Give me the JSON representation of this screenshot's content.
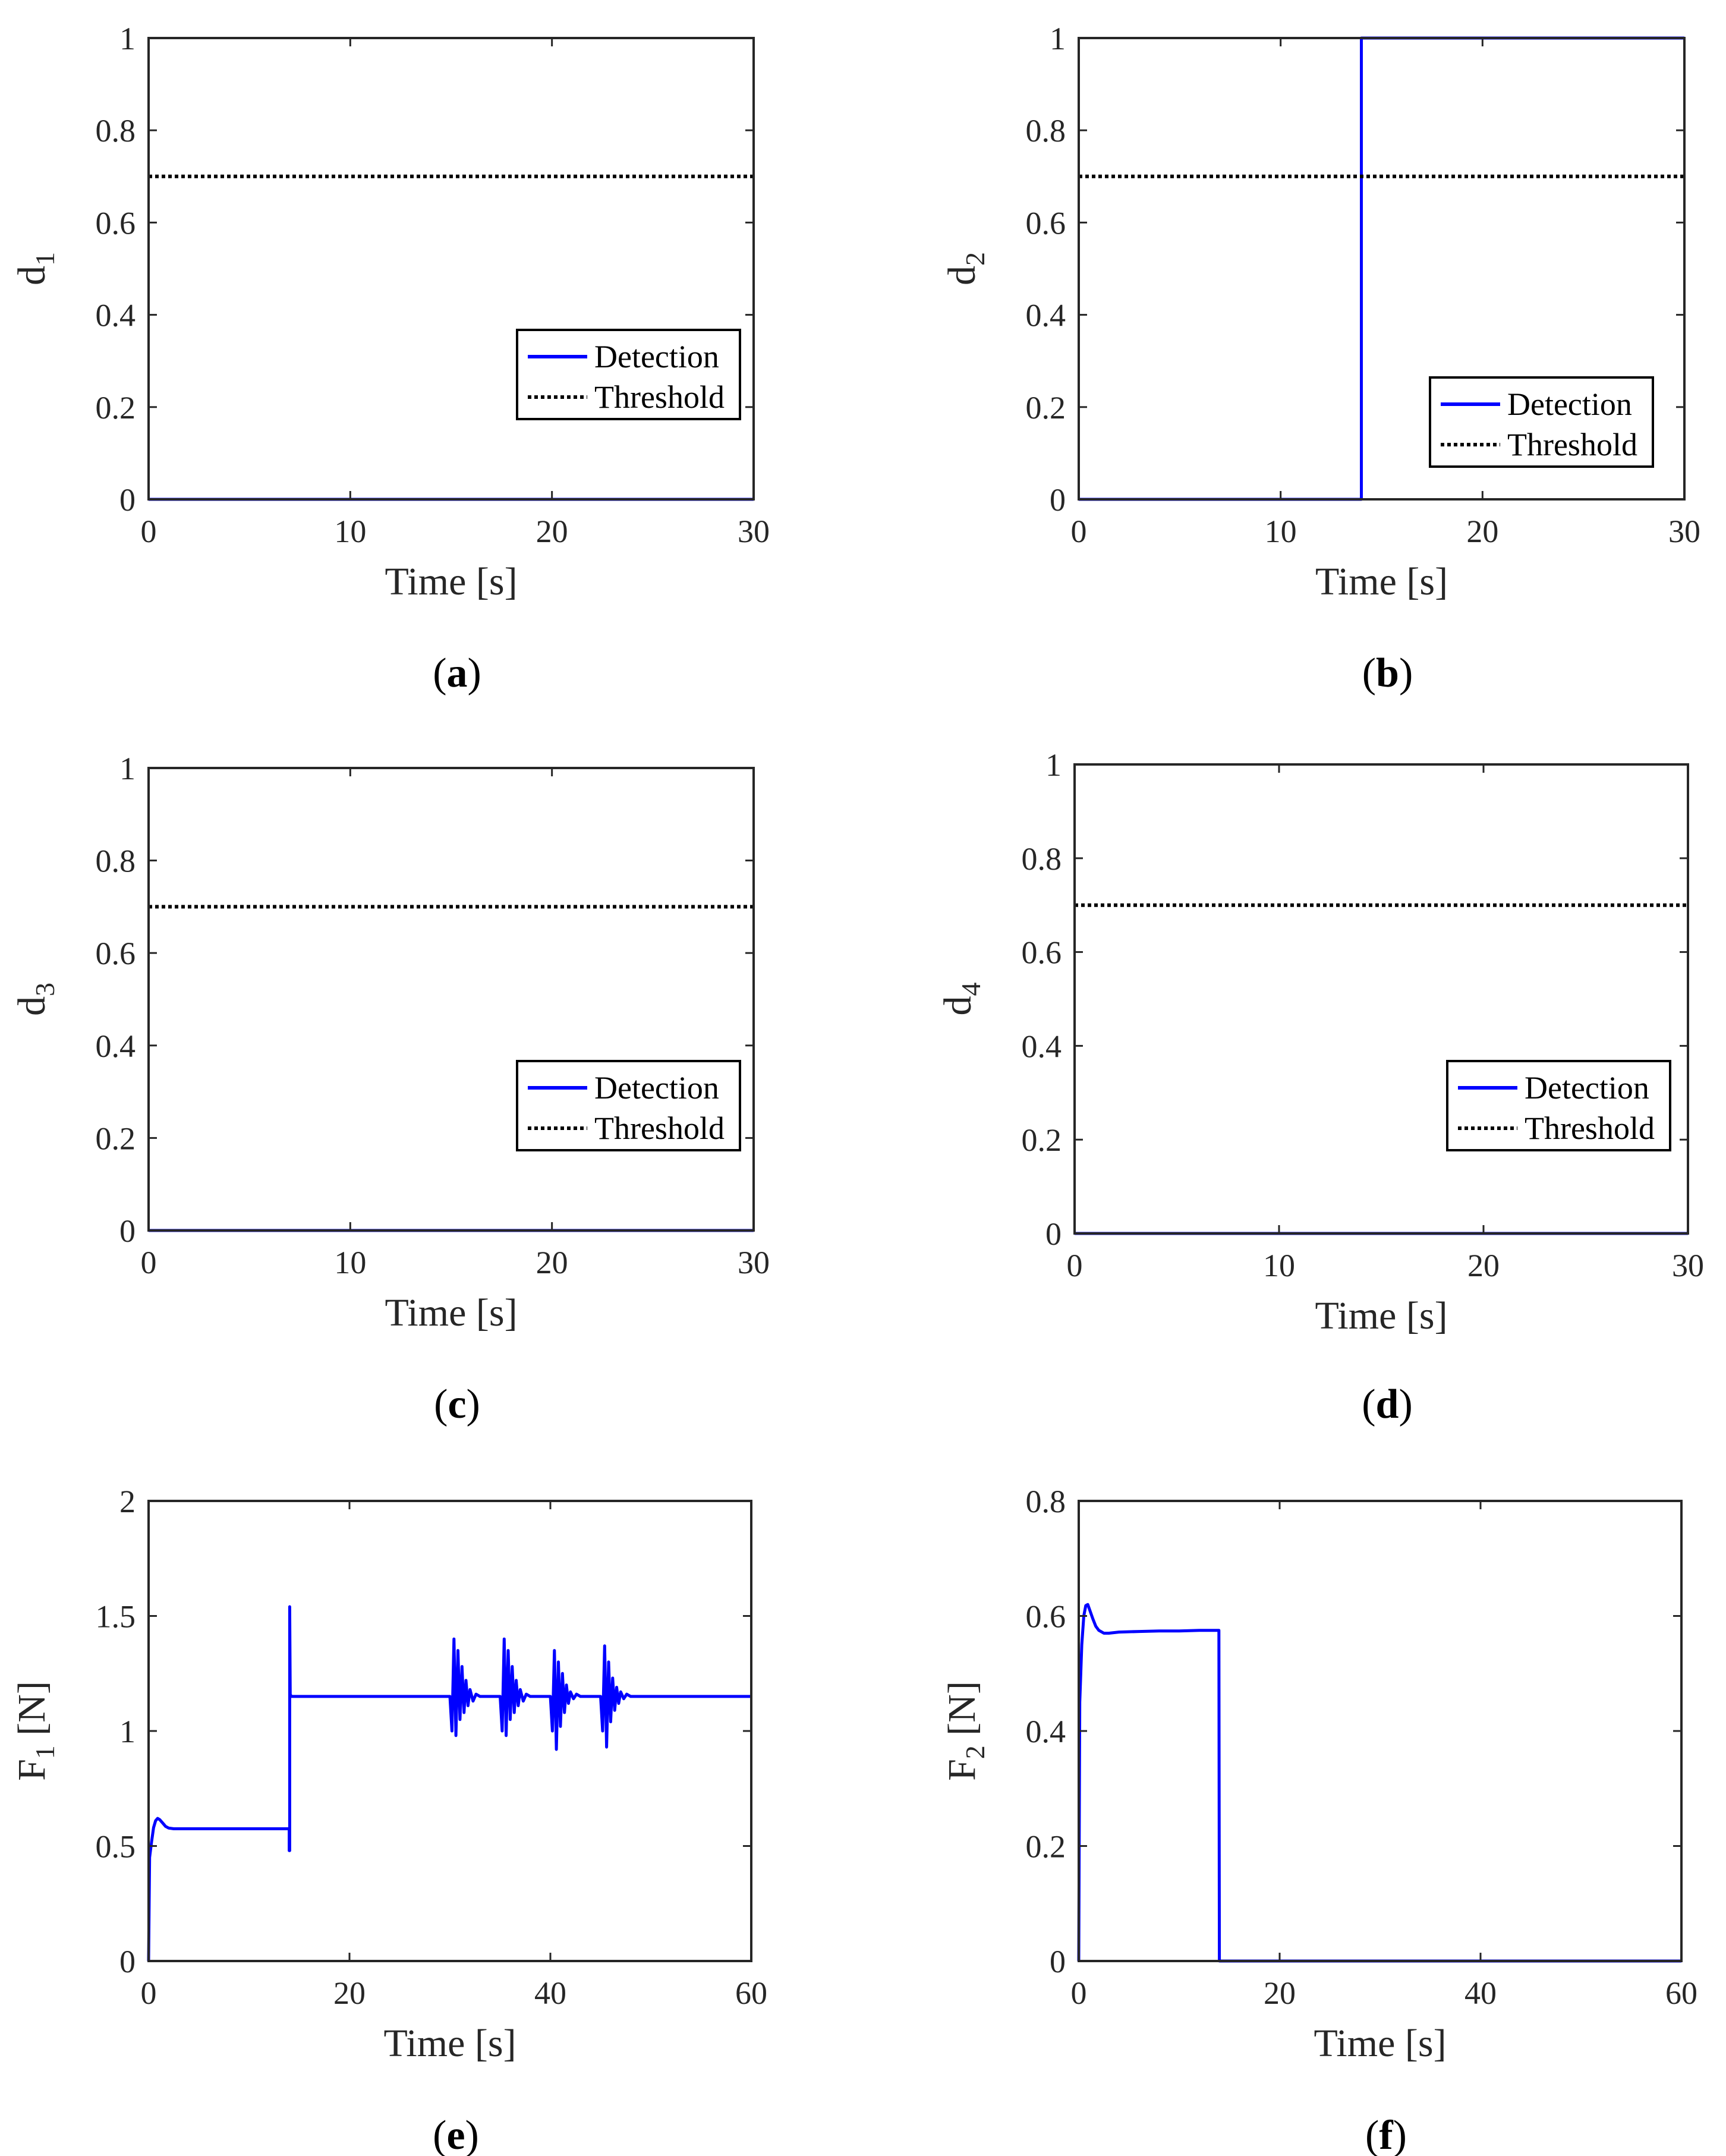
{
  "figure": {
    "colors": {
      "series": "#0000ff",
      "threshold": "#000000",
      "axes": "#262626"
    }
  },
  "chart_data": [
    {
      "id": "a",
      "caption": "(a)",
      "caption_letter": "a",
      "type": "line",
      "xlabel": "Time [s]",
      "ylabel": "d",
      "ylabel_sub": "1",
      "xlim": [
        0,
        30
      ],
      "ylim": [
        0,
        1
      ],
      "xticks": [
        "0",
        "10",
        "20",
        "30"
      ],
      "yticks": [
        "0",
        "0.2",
        "0.4",
        "0.6",
        "0.8",
        "1"
      ],
      "legend": {
        "position": "lower-right",
        "entries": [
          "Detection",
          "Threshold"
        ]
      },
      "series": [
        {
          "name": "Detection",
          "style": "solid",
          "x": [
            0,
            30
          ],
          "y": [
            0,
            0
          ]
        },
        {
          "name": "Threshold",
          "style": "dotted",
          "x": [
            0,
            30
          ],
          "y": [
            0.7,
            0.7
          ]
        }
      ]
    },
    {
      "id": "b",
      "caption": "(b)",
      "caption_letter": "b",
      "type": "line",
      "xlabel": "Time [s]",
      "ylabel": "d",
      "ylabel_sub": "2",
      "xlim": [
        0,
        30
      ],
      "ylim": [
        0,
        1
      ],
      "xticks": [
        "0",
        "10",
        "20",
        "30"
      ],
      "yticks": [
        "0",
        "0.2",
        "0.4",
        "0.6",
        "0.8",
        "1"
      ],
      "legend": {
        "position": "lower-right",
        "entries": [
          "Detection",
          "Threshold"
        ]
      },
      "series": [
        {
          "name": "Detection",
          "style": "solid",
          "x": [
            0,
            14,
            14,
            30
          ],
          "y": [
            0,
            0,
            1,
            1
          ]
        },
        {
          "name": "Threshold",
          "style": "dotted",
          "x": [
            0,
            30
          ],
          "y": [
            0.7,
            0.7
          ]
        }
      ]
    },
    {
      "id": "c",
      "caption": "(c)",
      "caption_letter": "c",
      "type": "line",
      "xlabel": "Time [s]",
      "ylabel": "d",
      "ylabel_sub": "3",
      "xlim": [
        0,
        30
      ],
      "ylim": [
        0,
        1
      ],
      "xticks": [
        "0",
        "10",
        "20",
        "30"
      ],
      "yticks": [
        "0",
        "0.2",
        "0.4",
        "0.6",
        "0.8",
        "1"
      ],
      "legend": {
        "position": "lower-right",
        "entries": [
          "Detection",
          "Threshold"
        ]
      },
      "series": [
        {
          "name": "Detection",
          "style": "solid",
          "x": [
            0,
            30
          ],
          "y": [
            0,
            0
          ]
        },
        {
          "name": "Threshold",
          "style": "dotted",
          "x": [
            0,
            30
          ],
          "y": [
            0.7,
            0.7
          ]
        }
      ]
    },
    {
      "id": "d",
      "caption": "(d)",
      "caption_letter": "d",
      "type": "line",
      "xlabel": "Time [s]",
      "ylabel": "d",
      "ylabel_sub": "4",
      "xlim": [
        0,
        30
      ],
      "ylim": [
        0,
        1
      ],
      "xticks": [
        "0",
        "10",
        "20",
        "30"
      ],
      "yticks": [
        "0",
        "0.2",
        "0.4",
        "0.6",
        "0.8",
        "1"
      ],
      "legend": {
        "position": "lower-right",
        "entries": [
          "Detection",
          "Threshold"
        ]
      },
      "series": [
        {
          "name": "Detection",
          "style": "solid",
          "x": [
            0,
            30
          ],
          "y": [
            0,
            0
          ]
        },
        {
          "name": "Threshold",
          "style": "dotted",
          "x": [
            0,
            30
          ],
          "y": [
            0.7,
            0.7
          ]
        }
      ]
    },
    {
      "id": "e",
      "caption": "(e)",
      "caption_letter": "e",
      "type": "line",
      "xlabel": "Time [s]",
      "ylabel": "F",
      "ylabel_sub": "1",
      "ylabel_tail": " [N]",
      "xlim": [
        0,
        60
      ],
      "ylim": [
        0,
        2
      ],
      "xticks": [
        "0",
        "20",
        "40",
        "60"
      ],
      "yticks": [
        "0",
        "0.5",
        "1",
        "1.5",
        "2"
      ],
      "series": [
        {
          "style": "solid",
          "x": [
            0,
            0.1,
            0.3,
            0.5,
            0.7,
            0.9,
            1.1,
            1.4,
            1.7,
            2.0,
            2.5,
            3.0,
            4.0,
            6.0,
            8.0,
            10.0,
            12.0,
            13.9,
            14.0,
            14.0,
            14.05,
            14.05,
            14.1,
            14.2,
            15.0,
            20.0,
            25.0,
            29.9,
            30.0,
            30.2,
            30.4,
            30.6,
            30.8,
            31.0,
            31.2,
            31.4,
            31.6,
            31.8,
            32.0,
            32.3,
            32.6,
            33.0,
            35.0,
            35.2,
            35.4,
            35.6,
            35.8,
            36.0,
            36.2,
            36.4,
            36.6,
            36.8,
            37.0,
            37.3,
            37.6,
            38.0,
            40.0,
            40.2,
            40.4,
            40.6,
            40.8,
            41.0,
            41.2,
            41.4,
            41.6,
            41.8,
            42.0,
            42.3,
            42.6,
            43.0,
            45.0,
            45.2,
            45.4,
            45.6,
            45.8,
            46.0,
            46.2,
            46.4,
            46.6,
            46.8,
            47.0,
            47.3,
            47.6,
            48.0,
            50.0,
            60.0
          ],
          "y": [
            0,
            0.45,
            0.52,
            0.58,
            0.61,
            0.62,
            0.615,
            0.6,
            0.585,
            0.578,
            0.575,
            0.575,
            0.575,
            0.575,
            0.575,
            0.575,
            0.575,
            0.575,
            0.575,
            0.48,
            0.48,
            1.54,
            1.16,
            1.15,
            1.15,
            1.15,
            1.15,
            1.15,
            1.15,
            1.0,
            1.4,
            0.98,
            1.35,
            1.05,
            1.28,
            1.08,
            1.22,
            1.11,
            1.18,
            1.13,
            1.16,
            1.15,
            1.15,
            1.0,
            1.4,
            0.98,
            1.35,
            1.05,
            1.28,
            1.08,
            1.22,
            1.11,
            1.18,
            1.13,
            1.16,
            1.15,
            1.15,
            1.0,
            1.35,
            0.92,
            1.3,
            1.02,
            1.25,
            1.08,
            1.2,
            1.12,
            1.17,
            1.14,
            1.16,
            1.15,
            1.15,
            1.0,
            1.37,
            0.93,
            1.3,
            1.04,
            1.23,
            1.09,
            1.19,
            1.12,
            1.17,
            1.14,
            1.16,
            1.15,
            1.15,
            1.15
          ]
        }
      ]
    },
    {
      "id": "f",
      "caption": "(f)",
      "caption_letter": "f",
      "type": "line",
      "xlabel": "Time [s]",
      "ylabel": "F",
      "ylabel_sub": "2",
      "ylabel_tail": " [N]",
      "xlim": [
        0,
        60
      ],
      "ylim": [
        0,
        0.8
      ],
      "xticks": [
        "0",
        "20",
        "40",
        "60"
      ],
      "yticks": [
        "0",
        "0.2",
        "0.4",
        "0.6",
        "0.8"
      ],
      "series": [
        {
          "style": "solid",
          "x": [
            0,
            0.1,
            0.3,
            0.5,
            0.7,
            0.9,
            1.1,
            1.4,
            1.7,
            2.0,
            2.5,
            3.0,
            4.0,
            6.0,
            8.0,
            10.0,
            12.0,
            13.95,
            14.0,
            20.0,
            60.0
          ],
          "y": [
            0,
            0.45,
            0.55,
            0.6,
            0.618,
            0.62,
            0.61,
            0.595,
            0.582,
            0.575,
            0.57,
            0.57,
            0.572,
            0.573,
            0.574,
            0.574,
            0.575,
            0.575,
            0,
            0,
            0
          ]
        }
      ]
    }
  ]
}
